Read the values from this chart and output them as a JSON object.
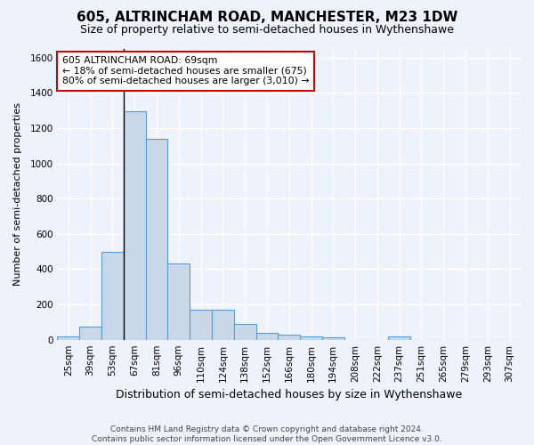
{
  "title": "605, ALTRINCHAM ROAD, MANCHESTER, M23 1DW",
  "subtitle": "Size of property relative to semi-detached houses in Wythenshawe",
  "xlabel": "Distribution of semi-detached houses by size in Wythenshawe",
  "ylabel": "Number of semi-detached properties",
  "footer_line1": "Contains HM Land Registry data © Crown copyright and database right 2024.",
  "footer_line2": "Contains public sector information licensed under the Open Government Licence v3.0.",
  "annotation_line1": "605 ALTRINCHAM ROAD: 69sqm",
  "annotation_line2": "← 18% of semi-detached houses are smaller (675)",
  "annotation_line3": "80% of semi-detached houses are larger (3,010) →",
  "bar_color": "#c8d8e8",
  "bar_edge_color": "#5b9bd5",
  "marker_line_color": "#000000",
  "annotation_box_color": "#ffffff",
  "annotation_box_edge": "#cc0000",
  "background_color": "#eef2fa",
  "grid_color": "#ffffff",
  "categories": [
    "25sqm",
    "39sqm",
    "53sqm",
    "67sqm",
    "81sqm",
    "96sqm",
    "110sqm",
    "124sqm",
    "138sqm",
    "152sqm",
    "166sqm",
    "180sqm",
    "194sqm",
    "208sqm",
    "222sqm",
    "237sqm",
    "251sqm",
    "265sqm",
    "279sqm",
    "293sqm",
    "307sqm"
  ],
  "values": [
    18,
    72,
    500,
    1295,
    1140,
    435,
    170,
    170,
    88,
    38,
    28,
    18,
    12,
    0,
    0,
    18,
    0,
    0,
    0,
    0,
    0
  ],
  "marker_bin_index": 3,
  "ylim": [
    0,
    1650
  ],
  "yticks": [
    0,
    200,
    400,
    600,
    800,
    1000,
    1200,
    1400,
    1600
  ],
  "title_fontsize": 11,
  "subtitle_fontsize": 9,
  "ylabel_fontsize": 8,
  "xlabel_fontsize": 9,
  "tick_fontsize": 7.5,
  "footer_fontsize": 6.5,
  "annotation_fontsize": 7.8
}
